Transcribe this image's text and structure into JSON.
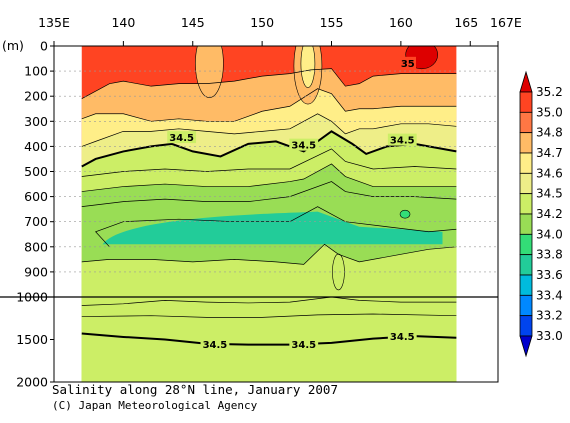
{
  "chart_data": {
    "type": "heatmap",
    "title": "Salinity along 28°N line, January 2007",
    "credit": "(C) Japan Meteorological Agency",
    "x_ticks": [
      {
        "lon": 135,
        "label": "135E"
      },
      {
        "lon": 140,
        "label": "140"
      },
      {
        "lon": 145,
        "label": "145"
      },
      {
        "lon": 150,
        "label": "150"
      },
      {
        "lon": 155,
        "label": "155"
      },
      {
        "lon": 160,
        "label": "160"
      },
      {
        "lon": 165,
        "label": "165"
      },
      {
        "lon": 167,
        "label": "167E"
      }
    ],
    "xlim": [
      135,
      167
    ],
    "data_xrange": [
      137,
      164
    ],
    "y_unit_label": "(m)",
    "y_ticks_upper": [
      {
        "depth": 0,
        "label": "0"
      },
      {
        "depth": 100,
        "label": "100"
      },
      {
        "depth": 200,
        "label": "200"
      },
      {
        "depth": 300,
        "label": "300"
      },
      {
        "depth": 400,
        "label": "400"
      },
      {
        "depth": 500,
        "label": "500"
      },
      {
        "depth": 600,
        "label": "600"
      },
      {
        "depth": 700,
        "label": "700"
      },
      {
        "depth": 800,
        "label": "800"
      },
      {
        "depth": 900,
        "label": "900"
      },
      {
        "depth": 1000,
        "label": "1000"
      }
    ],
    "y_ticks_lower": [
      {
        "depth": 1500,
        "label": "1500"
      },
      {
        "depth": 2000,
        "label": "2000"
      }
    ],
    "colorbar": {
      "levels": [
        33.0,
        33.2,
        33.4,
        33.6,
        33.8,
        34.0,
        34.2,
        34.5,
        34.6,
        34.7,
        34.8,
        35.0,
        35.2
      ],
      "labels": [
        "33.0",
        "33.2",
        "33.4",
        "33.6",
        "33.8",
        "34.0",
        "34.2",
        "34.5",
        "34.6",
        "34.7",
        "34.8",
        "35.0",
        "35.2"
      ],
      "colors": [
        "#0000cc",
        "#0044ee",
        "#0088ff",
        "#00bbdd",
        "#22cc99",
        "#33dd77",
        "#99dd55",
        "#ccee66",
        "#eeee88",
        "#ffee88",
        "#ffbb66",
        "#ff7744",
        "#ff4422",
        "#dd0000"
      ]
    },
    "contour_labels": [
      {
        "lon": 144.2,
        "depth": 363,
        "text": "34.5"
      },
      {
        "lon": 153.0,
        "depth": 393,
        "text": "34.5"
      },
      {
        "lon": 160.1,
        "depth": 373,
        "text": "34.5"
      },
      {
        "lon": 160.5,
        "depth": 67,
        "text": "35"
      },
      {
        "lon": 146.6,
        "depth": 1555,
        "text": "34.5"
      },
      {
        "lon": 153.0,
        "depth": 1555,
        "text": "34.5"
      },
      {
        "lon": 160.1,
        "depth": 1460,
        "text": "34.5"
      }
    ],
    "bands": [
      {
        "value_class": 11,
        "lower": [
          [
            137,
            210
          ],
          [
            139,
            150
          ],
          [
            140,
            140
          ],
          [
            142,
            160
          ],
          [
            144,
            150
          ],
          [
            146,
            150
          ],
          [
            148,
            140
          ],
          [
            150,
            120
          ],
          [
            152,
            110
          ],
          [
            153.5,
            95
          ],
          [
            155,
            90
          ],
          [
            156,
            160
          ],
          [
            157,
            150
          ],
          [
            158,
            120
          ],
          [
            160,
            110
          ],
          [
            162,
            110
          ],
          [
            164,
            110
          ]
        ]
      },
      {
        "value_class": 10,
        "lower": [
          [
            137,
            290
          ],
          [
            138,
            270
          ],
          [
            140,
            270
          ],
          [
            142,
            300
          ],
          [
            144,
            290
          ],
          [
            146,
            300
          ],
          [
            148,
            300
          ],
          [
            150,
            260
          ],
          [
            152,
            240
          ],
          [
            154,
            170
          ],
          [
            155,
            190
          ],
          [
            156,
            260
          ],
          [
            157,
            250
          ],
          [
            158,
            250
          ],
          [
            160,
            240
          ],
          [
            162,
            240
          ],
          [
            164,
            240
          ]
        ]
      },
      {
        "value_class": 9,
        "lower": [
          [
            137,
            400
          ],
          [
            138,
            380
          ],
          [
            140,
            340
          ],
          [
            142,
            340
          ],
          [
            144,
            330
          ],
          [
            146,
            340
          ],
          [
            148,
            350
          ],
          [
            150,
            340
          ],
          [
            152,
            330
          ],
          [
            154,
            270
          ],
          [
            155,
            300
          ],
          [
            156,
            350
          ],
          [
            157,
            330
          ],
          [
            158,
            330
          ],
          [
            160,
            310
          ],
          [
            162,
            310
          ],
          [
            164,
            320
          ]
        ]
      },
      {
        "value_class": 8,
        "lower": [
          [
            137,
            480
          ],
          [
            138,
            450
          ],
          [
            140,
            420
          ],
          [
            142,
            400
          ],
          [
            143.5,
            390
          ],
          [
            145,
            420
          ],
          [
            147,
            440
          ],
          [
            149,
            390
          ],
          [
            151,
            380
          ],
          [
            153,
            420
          ],
          [
            155,
            340
          ],
          [
            156.5,
            390
          ],
          [
            157.5,
            430
          ],
          [
            159,
            400
          ],
          [
            161,
            390
          ],
          [
            163,
            410
          ],
          [
            164,
            420
          ]
        ]
      },
      {
        "value_class": 7,
        "lower": [
          [
            137,
            580
          ],
          [
            140,
            560
          ],
          [
            143,
            550
          ],
          [
            146,
            560
          ],
          [
            149,
            560
          ],
          [
            152,
            540
          ],
          [
            153,
            530
          ],
          [
            155,
            470
          ],
          [
            156,
            520
          ],
          [
            158,
            560
          ],
          [
            161,
            560
          ],
          [
            164,
            560
          ]
        ]
      },
      {
        "value_class": 6,
        "lower": [
          [
            137,
            860
          ],
          [
            139,
            850
          ],
          [
            142,
            850
          ],
          [
            145,
            860
          ],
          [
            148,
            850
          ],
          [
            151,
            860
          ],
          [
            153,
            870
          ],
          [
            154.5,
            790
          ],
          [
            155.5,
            830
          ],
          [
            157,
            860
          ],
          [
            160,
            830
          ],
          [
            162,
            810
          ],
          [
            164,
            800
          ]
        ]
      },
      {
        "value_class": 7,
        "lower": [
          [
            137,
            1100
          ],
          [
            140,
            1080
          ],
          [
            143,
            1040
          ],
          [
            146,
            1060
          ],
          [
            149,
            1070
          ],
          [
            152,
            1060
          ],
          [
            155,
            1000
          ],
          [
            157,
            1040
          ],
          [
            160,
            1060
          ],
          [
            164,
            1060
          ]
        ]
      },
      {
        "value_class": 7,
        "lower": [
          [
            137,
            2000
          ],
          [
            164,
            2000
          ]
        ]
      }
    ],
    "contours_upper": [
      {
        "value": 35.0,
        "points": [
          [
            137,
            210
          ],
          [
            139,
            150
          ],
          [
            140,
            140
          ],
          [
            142,
            160
          ],
          [
            144,
            150
          ],
          [
            146,
            150
          ],
          [
            148,
            140
          ],
          [
            150,
            120
          ],
          [
            152,
            110
          ],
          [
            153.5,
            95
          ],
          [
            155,
            90
          ],
          [
            156,
            160
          ],
          [
            157,
            150
          ],
          [
            158,
            120
          ],
          [
            160,
            110
          ],
          [
            162,
            110
          ],
          [
            164,
            110
          ]
        ]
      },
      {
        "value": 34.8,
        "points": [
          [
            137,
            290
          ],
          [
            138,
            270
          ],
          [
            140,
            270
          ],
          [
            142,
            300
          ],
          [
            144,
            290
          ],
          [
            146,
            300
          ],
          [
            148,
            300
          ],
          [
            150,
            260
          ],
          [
            152,
            240
          ],
          [
            154,
            170
          ],
          [
            155,
            190
          ],
          [
            156,
            260
          ],
          [
            157,
            250
          ],
          [
            158,
            250
          ],
          [
            160,
            240
          ],
          [
            162,
            240
          ],
          [
            164,
            240
          ]
        ]
      },
      {
        "value": 34.7,
        "points": [
          [
            137,
            400
          ],
          [
            138,
            380
          ],
          [
            140,
            340
          ],
          [
            142,
            340
          ],
          [
            144,
            330
          ],
          [
            146,
            340
          ],
          [
            148,
            350
          ],
          [
            150,
            340
          ],
          [
            152,
            330
          ],
          [
            154,
            270
          ],
          [
            155,
            300
          ],
          [
            156,
            350
          ],
          [
            157,
            330
          ],
          [
            158,
            330
          ],
          [
            160,
            310
          ],
          [
            162,
            310
          ],
          [
            164,
            320
          ]
        ]
      },
      {
        "value": 34.5,
        "bold": true,
        "points": [
          [
            137,
            480
          ],
          [
            138,
            450
          ],
          [
            140,
            420
          ],
          [
            142,
            400
          ],
          [
            143.5,
            390
          ],
          [
            145,
            420
          ],
          [
            147,
            440
          ],
          [
            149,
            390
          ],
          [
            151,
            380
          ],
          [
            153,
            420
          ],
          [
            155,
            340
          ],
          [
            156.5,
            390
          ],
          [
            157.5,
            430
          ],
          [
            159,
            400
          ],
          [
            161,
            390
          ],
          [
            163,
            410
          ],
          [
            164,
            420
          ]
        ]
      },
      {
        "value": 34.4,
        "points": [
          [
            137,
            520
          ],
          [
            140,
            500
          ],
          [
            143,
            490
          ],
          [
            146,
            500
          ],
          [
            149,
            490
          ],
          [
            152,
            490
          ],
          [
            155,
            410
          ],
          [
            156,
            460
          ],
          [
            158,
            490
          ],
          [
            161,
            480
          ],
          [
            164,
            490
          ]
        ]
      },
      {
        "value": 34.3,
        "points": [
          [
            137,
            580
          ],
          [
            140,
            560
          ],
          [
            143,
            550
          ],
          [
            146,
            560
          ],
          [
            149,
            560
          ],
          [
            152,
            540
          ],
          [
            153,
            530
          ],
          [
            155,
            470
          ],
          [
            156,
            520
          ],
          [
            158,
            560
          ],
          [
            161,
            560
          ],
          [
            164,
            560
          ]
        ]
      },
      {
        "value": 34.2,
        "points": [
          [
            137,
            640
          ],
          [
            140,
            620
          ],
          [
            143,
            610
          ],
          [
            146,
            620
          ],
          [
            149,
            620
          ],
          [
            152,
            600
          ],
          [
            155,
            540
          ],
          [
            156,
            580
          ],
          [
            158,
            600
          ],
          [
            161,
            600
          ],
          [
            164,
            610
          ]
        ]
      },
      {
        "value": 34.1,
        "points": [
          [
            139,
            800
          ],
          [
            138,
            740
          ],
          [
            140,
            700
          ],
          [
            144,
            690
          ],
          [
            148,
            700
          ],
          [
            152,
            700
          ],
          [
            154,
            640
          ],
          [
            156,
            700
          ],
          [
            159,
            720
          ],
          [
            162,
            740
          ],
          [
            164,
            730
          ]
        ]
      },
      {
        "value": 34.0,
        "points": [
          [
            137,
            860
          ],
          [
            139,
            850
          ],
          [
            142,
            850
          ],
          [
            145,
            860
          ],
          [
            148,
            850
          ],
          [
            151,
            860
          ],
          [
            153,
            870
          ],
          [
            154.5,
            790
          ],
          [
            155.5,
            830
          ],
          [
            157,
            860
          ],
          [
            160,
            830
          ],
          [
            162,
            810
          ],
          [
            164,
            800
          ]
        ]
      }
    ],
    "contours_lower": [
      {
        "value": 34.4,
        "points": [
          [
            137,
            1100
          ],
          [
            140,
            1080
          ],
          [
            143,
            1040
          ],
          [
            146,
            1060
          ],
          [
            149,
            1070
          ],
          [
            152,
            1060
          ],
          [
            155,
            1000
          ],
          [
            157,
            1040
          ],
          [
            160,
            1060
          ],
          [
            164,
            1060
          ]
        ]
      },
      {
        "value": 34.45,
        "points": [
          [
            137,
            1230
          ],
          [
            142,
            1220
          ],
          [
            146,
            1240
          ],
          [
            150,
            1240
          ],
          [
            154,
            1210
          ],
          [
            158,
            1200
          ],
          [
            164,
            1220
          ]
        ]
      },
      {
        "value": 34.5,
        "bold": true,
        "points": [
          [
            137,
            1430
          ],
          [
            140,
            1470
          ],
          [
            143,
            1500
          ],
          [
            146,
            1550
          ],
          [
            149,
            1560
          ],
          [
            152,
            1560
          ],
          [
            155,
            1540
          ],
          [
            158,
            1490
          ],
          [
            161,
            1460
          ],
          [
            164,
            1480
          ]
        ]
      }
    ]
  }
}
